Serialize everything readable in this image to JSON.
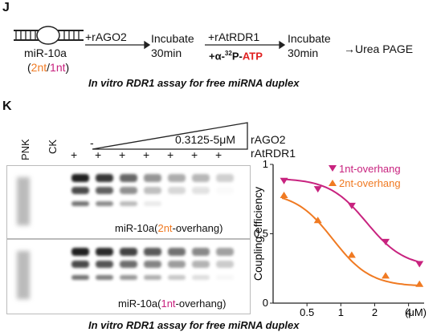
{
  "panel_j": {
    "label": "J",
    "mirna_name": "miR-10a",
    "overhang_open": "(",
    "overhang_2nt": "2nt",
    "overhang_sep": "/",
    "overhang_1nt": "1nt",
    "overhang_close": ")",
    "step1": "+rAGO2",
    "step2_line1": "Incubate",
    "step2_line2": "30min",
    "step3": "+rAtRDR1",
    "step3b_prefix": "+α-",
    "step3b_sup": "32",
    "step3b_mid": "P-",
    "step3b_atp": "ATP",
    "step4_line1": "Incubate",
    "step4_line2": "30min",
    "step5": "→Urea PAGE",
    "caption": "In vitro RDR1 assay for free miRNA duplex"
  },
  "panel_k": {
    "label": "K",
    "lane_pnk": "PNK",
    "lane_ck": "CK",
    "minus": "-",
    "conc": "0.3125-5μM",
    "rago2": "rAGO2",
    "ratrdr1": "rAtRDR1",
    "plus_signs": [
      "+",
      "+",
      "+",
      "+",
      "+",
      "+",
      "+"
    ],
    "blot_top_prefix": "miR-10a(",
    "blot_top_overhang": "2nt",
    "blot_top_suffix": "-overhang)",
    "blot_bot_prefix": "miR-10a(",
    "blot_bot_overhang": "1nt",
    "blot_bot_suffix": "-overhang)",
    "caption": "In vitro RDR1 assay for free miRNA duplex"
  },
  "colors": {
    "orange": "#f07a22",
    "magenta": "#c8237f",
    "red": "#e02020",
    "arrow": "#d0237e"
  },
  "chart_data": {
    "type": "scatter",
    "xlabel": "(μM)",
    "ylabel": "Coupling efficiency",
    "x_scale": "log",
    "xticks": [
      "0.5",
      "1",
      "2",
      "4"
    ],
    "yticks": [
      "0",
      "0.5",
      "1"
    ],
    "xlim": [
      0.25,
      5.5
    ],
    "ylim": [
      0,
      1.0
    ],
    "series": [
      {
        "name": "1nt-overhang",
        "marker": "triangle-down",
        "color": "#c8237f",
        "x": [
          0.3125,
          0.625,
          1.25,
          2.5,
          5
        ],
        "y": [
          0.88,
          0.82,
          0.7,
          0.44,
          0.28
        ]
      },
      {
        "name": "2nt-overhang",
        "marker": "triangle-up",
        "color": "#f07a22",
        "x": [
          0.3125,
          0.625,
          1.25,
          2.5,
          5
        ],
        "y": [
          0.78,
          0.6,
          0.35,
          0.2,
          0.14
        ]
      }
    ],
    "fit_curves": true,
    "legend_position": "top-right"
  }
}
